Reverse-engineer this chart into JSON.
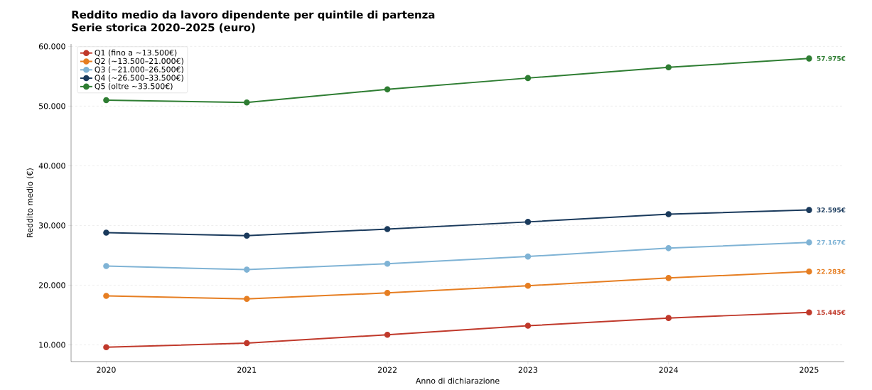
{
  "chart_data": {
    "type": "line",
    "title": "Reddito medio da lavoro dipendente per quintile di partenza",
    "subtitle": "Serie storica 2020–2025 (euro)",
    "xlabel": "Anno di dichiarazione",
    "ylabel": "Reddito medio (€)",
    "categories": [
      "2020",
      "2021",
      "2022",
      "2023",
      "2024",
      "2025"
    ],
    "series": [
      {
        "name": "Q1 (fino a ~13.500€)",
        "color": "#c0392b",
        "values": [
          9600,
          10300,
          11700,
          13200,
          14500,
          15445
        ],
        "value_labels": [
          null,
          null,
          null,
          null,
          null,
          "15.445€"
        ]
      },
      {
        "name": "Q2 (~13.500–21.000€)",
        "color": "#e67e22",
        "values": [
          18200,
          17700,
          18700,
          19900,
          21200,
          22283
        ],
        "value_labels": [
          null,
          null,
          null,
          null,
          null,
          "22.283€"
        ]
      },
      {
        "name": "Q3 (~21.000–26.500€)",
        "color": "#7fb3d5",
        "values": [
          23200,
          22600,
          23600,
          24800,
          26200,
          27167
        ],
        "value_labels": [
          null,
          null,
          null,
          null,
          null,
          "27.167€"
        ]
      },
      {
        "name": "Q4 (~26.500–33.500€)",
        "color": "#1a3a5c",
        "values": [
          28800,
          28300,
          29400,
          30600,
          31900,
          32595
        ],
        "value_labels": [
          null,
          null,
          null,
          null,
          null,
          "32.595€"
        ]
      },
      {
        "name": "Q5 (oltre ~33.500€)",
        "color": "#2e7d32",
        "values": [
          51000,
          50600,
          52800,
          54700,
          56500,
          57975
        ],
        "value_labels": [
          null,
          null,
          null,
          null,
          null,
          "57.975€"
        ]
      }
    ],
    "ylim": [
      7200,
      60400
    ],
    "yticks": [
      {
        "value": 10000,
        "label": "10.000"
      },
      {
        "value": 20000,
        "label": "20.000"
      },
      {
        "value": 30000,
        "label": "30.000"
      },
      {
        "value": 40000,
        "label": "40.000"
      },
      {
        "value": 50000,
        "label": "50.000"
      },
      {
        "value": 60000,
        "label": "60.000"
      }
    ],
    "grid": "y",
    "legend": "top left",
    "marker": "circle",
    "line_style": "solid"
  }
}
